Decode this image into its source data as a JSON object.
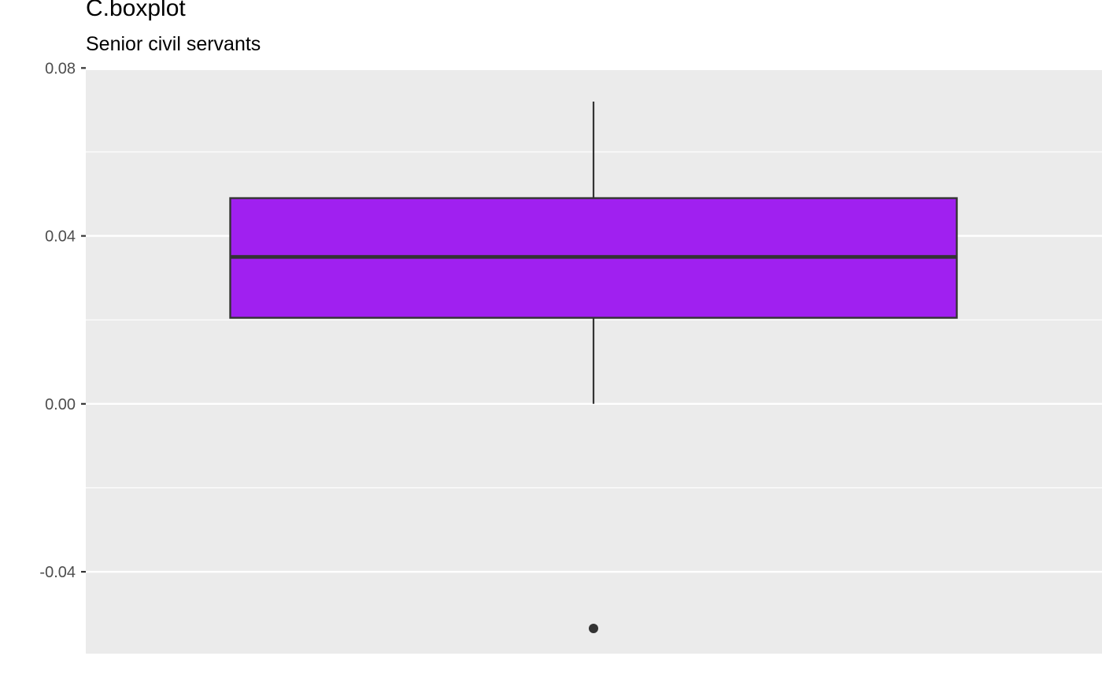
{
  "chart_data": {
    "type": "boxplot",
    "title": "C.boxplot",
    "subtitle": "Senior civil servants",
    "xlabel": "",
    "ylabel": "",
    "ylim": [
      -0.0595,
      0.0795
    ],
    "y_ticks": [
      0.08,
      0.04,
      0.0,
      -0.04
    ],
    "y_tick_labels": [
      "0.08",
      "0.04",
      "0.00",
      "-0.04"
    ],
    "y_minor_ticks": [
      0.06,
      0.02,
      -0.02,
      -0.06
    ],
    "grid": true,
    "legend": "none",
    "box": {
      "q1": 0.0205,
      "median": 0.035,
      "q3": 0.049,
      "whisker_low": 0.0,
      "whisker_high": 0.072,
      "outliers": [
        -0.0535
      ]
    },
    "colors": {
      "fill": "#a020f0",
      "stroke": "#333333",
      "panel": "#ebebeb",
      "grid": "#ffffff"
    }
  }
}
